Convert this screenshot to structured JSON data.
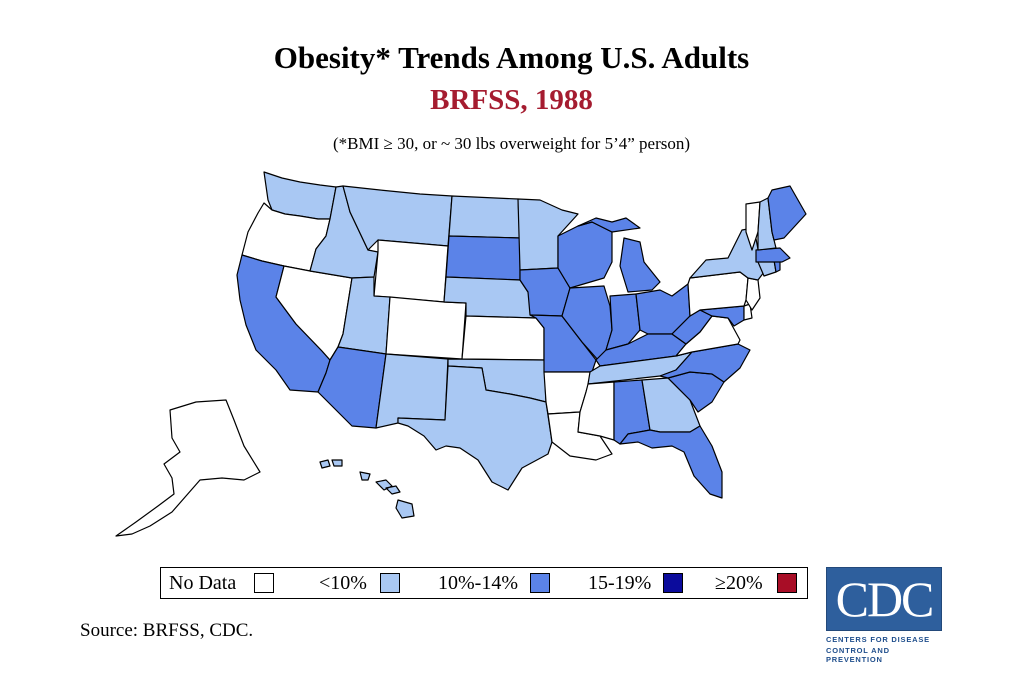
{
  "header": {
    "title": "Obesity* Trends Among U.S. Adults",
    "subtitle": "BRFSS, 1988",
    "note": "(*BMI ≥ 30, or ~ 30 lbs overweight for 5’4” person)"
  },
  "colors": {
    "no_data": "#ffffff",
    "lt10": "#a9c8f3",
    "p10_14": "#5b83e8",
    "p15_19": "#0b0b9c",
    "ge20": "#a80d26",
    "subtitle": "#a51c30",
    "border": "#000000"
  },
  "legend": [
    {
      "label": "No Data",
      "category": "no_data"
    },
    {
      "label": "<10%",
      "category": "lt10"
    },
    {
      "label": "10%-14%",
      "category": "p10_14"
    },
    {
      "label": "15-19%",
      "category": "p15_19"
    },
    {
      "label": "≥20%",
      "category": "ge20"
    }
  ],
  "states": {
    "WA": "lt10",
    "OR": "no_data",
    "CA": "p10_14",
    "NV": "no_data",
    "ID": "lt10",
    "MT": "lt10",
    "WY": "no_data",
    "UT": "lt10",
    "CO": "no_data",
    "AZ": "p10_14",
    "NM": "lt10",
    "ND": "lt10",
    "SD": "p10_14",
    "NE": "lt10",
    "KS": "no_data",
    "OK": "lt10",
    "TX": "lt10",
    "MN": "lt10",
    "IA": "p10_14",
    "MO": "p10_14",
    "AR": "no_data",
    "LA": "no_data",
    "WI": "p10_14",
    "IL": "p10_14",
    "MI": "p10_14",
    "IN": "p10_14",
    "OH": "p10_14",
    "KY": "p10_14",
    "TN": "lt10",
    "MS": "no_data",
    "AL": "p10_14",
    "GA": "lt10",
    "FL": "p10_14",
    "SC": "p10_14",
    "NC": "p10_14",
    "VA": "no_data",
    "WV": "p10_14",
    "MD": "p10_14",
    "DE": "no_data",
    "NJ": "no_data",
    "PA": "no_data",
    "NY": "lt10",
    "CT": "lt10",
    "RI": "p10_14",
    "MA": "p10_14",
    "VT": "no_data",
    "NH": "lt10",
    "ME": "p10_14",
    "AK": "no_data",
    "HI": "lt10"
  },
  "source": "Source: BRFSS, CDC.",
  "logo": {
    "text": "CDC",
    "line1": "CENTERS FOR DISEASE",
    "line2": "CONTROL AND PREVENTION"
  }
}
